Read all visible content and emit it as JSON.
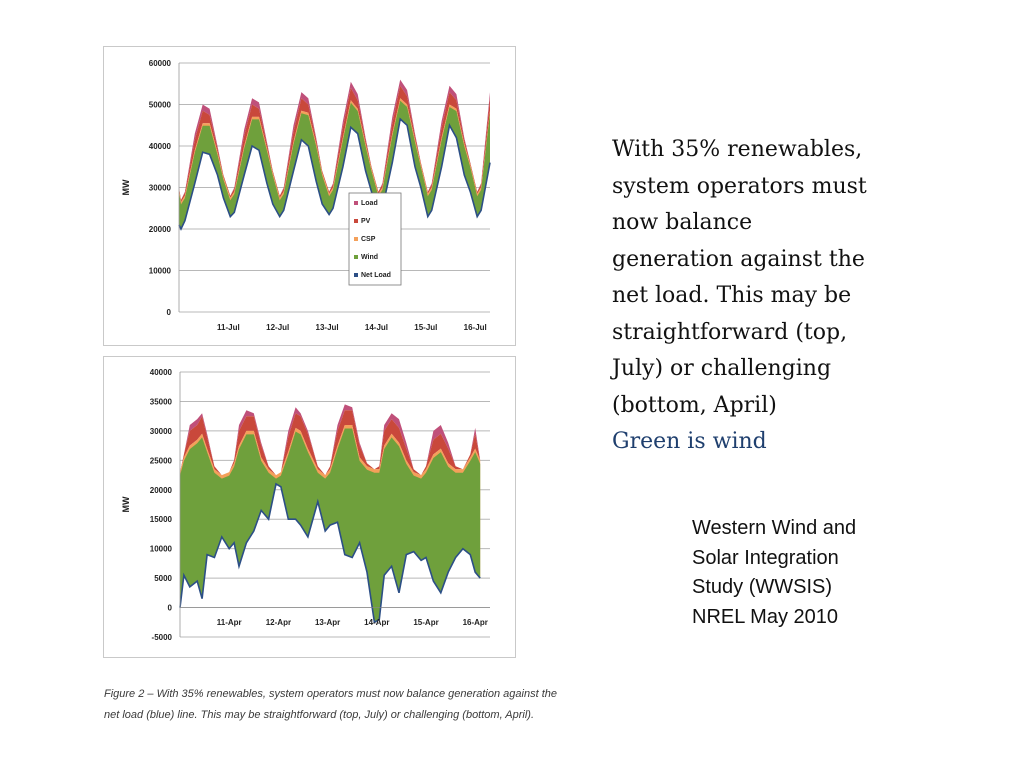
{
  "main_text": {
    "lines": [
      "With 35% renewables,",
      "system operators must",
      "now balance",
      "generation against the",
      "net load. This may be",
      "straightforward (top,",
      "July) or challenging",
      "(bottom, April)"
    ],
    "wind_note": "Green is wind"
  },
  "citation": {
    "lines": [
      "Western Wind and",
      "Solar Integration",
      "Study (WWSIS)",
      "NREL May 2010"
    ]
  },
  "figure_caption": {
    "line1": "Figure 2 – With 35% renewables, system operators must now balance generation against the",
    "line2": "net load (blue) line. This may be straightforward (top, July) or challenging (bottom, April)."
  },
  "colors": {
    "load": "#c0507a",
    "pv": "#c9483b",
    "csp": "#f4a05a",
    "wind": "#6fa03c",
    "net_load": "#2c4f86"
  },
  "chart_data": [
    {
      "type": "area",
      "ylabel": "MW",
      "xlabel": "",
      "ylim": [
        0,
        60000
      ],
      "yticks": [
        "60000",
        "50000",
        "40000",
        "30000",
        "20000",
        "10000",
        "0"
      ],
      "ytick_values": [
        60000,
        50000,
        40000,
        30000,
        20000,
        10000,
        0
      ],
      "x_tick_labels": [
        "11-Jul",
        "12-Jul",
        "13-Jul",
        "14-Jul",
        "15-Jul",
        "16-Jul"
      ],
      "grid": true,
      "legend_position": "center",
      "legend": [
        "Load",
        "PV",
        "CSP",
        "Wind",
        "Net Load"
      ],
      "x_days": [
        0,
        0.04,
        0.12,
        0.32,
        0.48,
        0.62,
        0.78,
        0.9,
        1.04,
        1.12,
        1.32,
        1.48,
        1.62,
        1.78,
        1.9,
        2.04,
        2.12,
        2.32,
        2.48,
        2.62,
        2.78,
        2.9,
        3.04,
        3.12,
        3.32,
        3.48,
        3.62,
        3.78,
        3.9,
        4.04,
        4.12,
        4.32,
        4.48,
        4.62,
        4.78,
        4.9,
        5.04,
        5.12,
        5.32,
        5.48,
        5.62,
        5.78,
        5.9,
        6.04,
        6.12,
        6.3
      ],
      "series": [
        {
          "name": "Load",
          "values": [
            30000,
            27000,
            29000,
            43000,
            50000,
            49000,
            40000,
            33000,
            28000,
            30000,
            44000,
            51500,
            50500,
            41000,
            34000,
            28000,
            30000,
            45000,
            53000,
            51500,
            42000,
            34000,
            29000,
            31000,
            46000,
            55500,
            52500,
            42000,
            35000,
            29000,
            31000,
            47000,
            56000,
            53500,
            43000,
            36000,
            29000,
            31000,
            46000,
            54500,
            52500,
            42000,
            36000,
            29000,
            31000,
            53000
          ]
        },
        {
          "name": "PV",
          "values": [
            30000,
            27000,
            28700,
            41500,
            48500,
            47500,
            39500,
            33000,
            28000,
            29700,
            42500,
            50000,
            49000,
            40500,
            34000,
            28000,
            29700,
            43500,
            51500,
            50000,
            41500,
            34000,
            29000,
            30700,
            44500,
            54000,
            51000,
            41500,
            35000,
            29000,
            30700,
            45500,
            54500,
            52000,
            42500,
            36000,
            29000,
            30700,
            44500,
            53000,
            51000,
            41500,
            36000,
            29000,
            30700,
            51500
          ]
        },
        {
          "name": "CSP",
          "values": [
            29500,
            26500,
            28000,
            39000,
            45500,
            45500,
            38500,
            32500,
            27500,
            29000,
            40000,
            47000,
            47000,
            39500,
            33500,
            27500,
            29000,
            41000,
            48500,
            48000,
            40500,
            33500,
            28500,
            30000,
            42000,
            51000,
            49000,
            40500,
            34500,
            28500,
            30000,
            43000,
            51500,
            50000,
            41500,
            35500,
            28500,
            30000,
            42000,
            50000,
            49000,
            40500,
            35500,
            28500,
            30000,
            48500
          ]
        },
        {
          "name": "Wind",
          "values": [
            21000,
            20000,
            22000,
            31000,
            38500,
            38000,
            33000,
            27500,
            23000,
            24000,
            33000,
            40000,
            39000,
            31000,
            26000,
            23000,
            24500,
            34000,
            41500,
            40000,
            31500,
            26000,
            23500,
            25000,
            35000,
            44500,
            43000,
            34000,
            29000,
            24000,
            25000,
            36000,
            46500,
            45000,
            35000,
            30000,
            23000,
            24500,
            35000,
            45000,
            42000,
            33000,
            29000,
            23000,
            24500,
            36000
          ]
        },
        {
          "name": "Net Load",
          "values": [
            21000,
            20000,
            22000,
            31000,
            38500,
            38000,
            33000,
            27500,
            23000,
            24000,
            33000,
            40000,
            39000,
            31000,
            26000,
            23000,
            24500,
            34000,
            41500,
            40000,
            31500,
            26000,
            23500,
            25000,
            35000,
            44500,
            43000,
            34000,
            29000,
            24000,
            25000,
            36000,
            46500,
            45000,
            35000,
            30000,
            23000,
            24500,
            35000,
            45000,
            42000,
            33000,
            29000,
            23000,
            24500,
            36000
          ]
        }
      ]
    },
    {
      "type": "area",
      "ylabel": "MW",
      "xlabel": "",
      "ylim": [
        -5000,
        40000
      ],
      "yticks": [
        "40000",
        "35000",
        "30000",
        "25000",
        "20000",
        "15000",
        "10000",
        "5000",
        "0",
        "-5000"
      ],
      "ytick_values": [
        40000,
        35000,
        30000,
        25000,
        20000,
        15000,
        10000,
        5000,
        0,
        -5000
      ],
      "x_tick_labels": [
        "11-Apr",
        "12-Apr",
        "13-Apr",
        "14-Apr",
        "15-Apr",
        "16-Apr"
      ],
      "grid": true,
      "x_days": [
        0,
        0.08,
        0.2,
        0.35,
        0.45,
        0.55,
        0.7,
        0.85,
        1.0,
        1.1,
        1.2,
        1.35,
        1.5,
        1.65,
        1.8,
        1.95,
        2.05,
        2.2,
        2.35,
        2.45,
        2.6,
        2.8,
        2.95,
        3.05,
        3.2,
        3.35,
        3.5,
        3.65,
        3.8,
        3.95,
        4.05,
        4.15,
        4.3,
        4.45,
        4.6,
        4.75,
        4.9,
        5.0,
        5.15,
        5.3,
        5.45,
        5.6,
        5.75,
        5.9,
        6.0,
        6.1
      ],
      "series": [
        {
          "name": "Load",
          "values": [
            23000,
            26000,
            31000,
            32000,
            33000,
            29500,
            24000,
            22500,
            23000,
            25000,
            31000,
            33500,
            33000,
            28000,
            24000,
            22500,
            23000,
            30000,
            34000,
            33000,
            30000,
            24000,
            22500,
            24000,
            31000,
            34500,
            34000,
            28000,
            24500,
            23500,
            24000,
            31000,
            33000,
            32000,
            28000,
            23500,
            22500,
            24000,
            30000,
            31000,
            28000,
            24000,
            23500,
            26000,
            30500,
            25000
          ]
        },
        {
          "name": "PV",
          "values": [
            23000,
            26000,
            30000,
            31000,
            32500,
            29000,
            24000,
            22500,
            23000,
            25000,
            30000,
            32500,
            32500,
            27500,
            24000,
            22500,
            23000,
            29000,
            33000,
            32500,
            29500,
            24000,
            22500,
            24000,
            30000,
            33500,
            33500,
            27500,
            24500,
            23500,
            24000,
            30000,
            32000,
            30500,
            27000,
            23500,
            22500,
            24000,
            28500,
            29500,
            27000,
            24000,
            23500,
            26000,
            29500,
            25000
          ]
        },
        {
          "name": "CSP",
          "values": [
            23000,
            25500,
            27500,
            28500,
            29500,
            27000,
            23500,
            22500,
            23000,
            24500,
            27500,
            30000,
            30000,
            25500,
            23500,
            22500,
            23000,
            26500,
            30500,
            30000,
            27000,
            23500,
            22500,
            23500,
            27500,
            31000,
            31000,
            25500,
            24000,
            23500,
            23500,
            27500,
            29500,
            28000,
            25000,
            23000,
            22500,
            23500,
            26000,
            27000,
            24500,
            23500,
            23500,
            25500,
            27000,
            25000
          ]
        },
        {
          "name": "Wind",
          "values": [
            0,
            5500,
            3500,
            4500,
            1500,
            9000,
            8500,
            12000,
            10000,
            11000,
            7000,
            11000,
            13000,
            16500,
            15000,
            21000,
            20500,
            15000,
            15000,
            14000,
            12000,
            18000,
            13000,
            14000,
            14500,
            9000,
            8500,
            11000,
            6000,
            -2500,
            -2000,
            5500,
            7000,
            2500,
            9000,
            9500,
            8000,
            8500,
            4500,
            2500,
            6000,
            8500,
            10000,
            9000,
            6000,
            5000
          ]
        },
        {
          "name": "Net Load",
          "values": [
            0,
            5500,
            3500,
            4500,
            1500,
            9000,
            8500,
            12000,
            10000,
            11000,
            7000,
            11000,
            13000,
            16500,
            15000,
            21000,
            20500,
            15000,
            15000,
            14000,
            12000,
            18000,
            13000,
            14000,
            14500,
            9000,
            8500,
            11000,
            6000,
            -2500,
            -2000,
            5500,
            7000,
            2500,
            9000,
            9500,
            8000,
            8500,
            4500,
            2500,
            6000,
            8500,
            10000,
            9000,
            6000,
            5000
          ]
        }
      ]
    }
  ]
}
